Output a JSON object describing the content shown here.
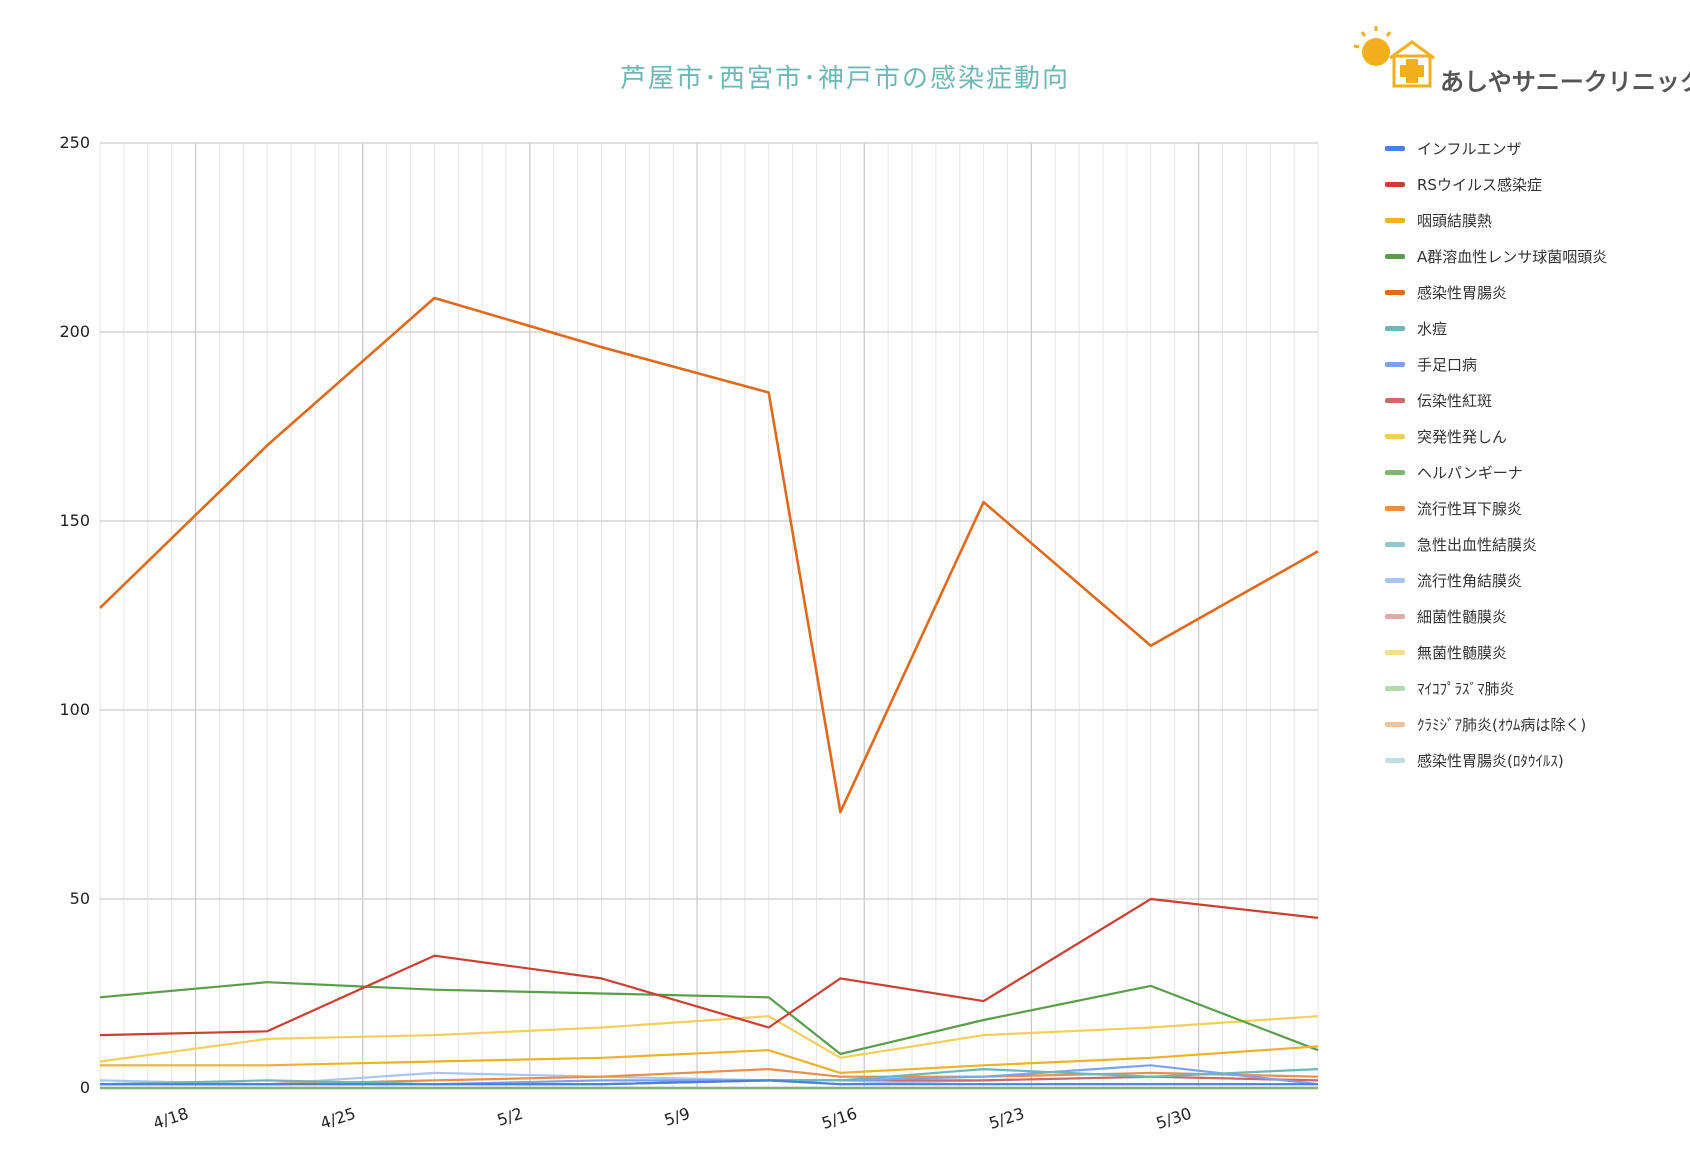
{
  "chart_data": {
    "type": "line",
    "title": "芦屋市･西宮市･神戸市の感染症動向",
    "xlabel": "",
    "ylabel": "",
    "ylim": [
      0,
      250
    ],
    "y_ticks": [
      "0",
      "50",
      "100",
      "150",
      "200",
      "250"
    ],
    "x_tick_labels": [
      "4/18",
      "4/25",
      "5/2",
      "5/9",
      "5/16",
      "5/23",
      "5/30"
    ],
    "x_tick_dates": [
      "4/18",
      "4/25",
      "5/2",
      "5/9",
      "5/16",
      "5/23",
      "5/30"
    ],
    "x": [
      "4/14",
      "4/21",
      "4/28",
      "5/5",
      "5/12",
      "5/15",
      "5/21",
      "5/28",
      "6/4"
    ],
    "x_range": [
      "4/14",
      "6/4"
    ],
    "grid": true,
    "legend_position": "right",
    "series": [
      {
        "name": "インフルエンザ",
        "color": "#4a7fe0",
        "values": [
          1,
          1,
          1,
          1,
          2,
          1,
          1,
          1,
          1
        ]
      },
      {
        "name": "RSウイルス感染症",
        "color": "#cc3f33",
        "values": [
          14,
          15,
          35,
          29,
          16,
          29,
          23,
          50,
          45
        ]
      },
      {
        "name": "咽頭結膜熱",
        "color": "#eeb229",
        "values": [
          6,
          6,
          7,
          8,
          10,
          4,
          6,
          8,
          11
        ]
      },
      {
        "name": "A群溶血性レンサ球菌咽頭炎",
        "color": "#5a9e4b",
        "values": [
          24,
          28,
          26,
          25,
          24,
          9,
          18,
          27,
          10
        ]
      },
      {
        "name": "感染性胃腸炎",
        "color": "#e06a1b",
        "values": [
          127,
          170,
          209,
          196,
          184,
          73,
          155,
          117,
          142
        ]
      },
      {
        "name": "水痘",
        "color": "#6cb8b8",
        "values": [
          1,
          2,
          1,
          1,
          2,
          2,
          5,
          3,
          5
        ]
      },
      {
        "name": "手足口病",
        "color": "#7ba3f0",
        "values": [
          1,
          1,
          1,
          2,
          2,
          2,
          3,
          6,
          1
        ]
      },
      {
        "name": "伝染性紅斑",
        "color": "#cf6a6a",
        "values": [
          1,
          1,
          1,
          1,
          2,
          2,
          2,
          3,
          2
        ]
      },
      {
        "name": "突発性発しん",
        "color": "#f2cf5b",
        "values": [
          7,
          13,
          14,
          16,
          19,
          8,
          14,
          16,
          19
        ]
      },
      {
        "name": "ヘルパンギーナ",
        "color": "#7ab86d",
        "values": [
          0,
          0,
          0,
          0,
          0,
          0,
          0,
          0,
          0
        ]
      },
      {
        "name": "流行性耳下腺炎",
        "color": "#e98f4a",
        "values": [
          1,
          1,
          2,
          3,
          5,
          3,
          3,
          4,
          3
        ]
      },
      {
        "name": "急性出血性結膜炎",
        "color": "#8ec9cc",
        "values": [
          0,
          0,
          0,
          0,
          0,
          0,
          0,
          0,
          0
        ]
      },
      {
        "name": "流行性角結膜炎",
        "color": "#a9c4f5",
        "values": [
          2,
          1,
          4,
          3,
          2,
          1,
          2,
          3,
          2
        ]
      },
      {
        "name": "細菌性髄膜炎",
        "color": "#e0aaa8",
        "values": [
          0,
          0,
          0,
          0,
          0,
          0,
          0,
          0,
          0
        ]
      },
      {
        "name": "無菌性髄膜炎",
        "color": "#f6de93",
        "values": [
          0,
          0,
          0,
          0,
          0,
          0,
          0,
          0,
          0
        ]
      },
      {
        "name": "ﾏｲｺﾌﾟﾗｽﾞﾏ肺炎",
        "color": "#b2d9ad",
        "values": [
          0,
          0,
          0,
          0,
          0,
          0,
          0,
          0,
          0
        ]
      },
      {
        "name": "ｸﾗﾐｼﾞｱ肺炎(ｵｳﾑ病は除く)",
        "color": "#f0c29c",
        "values": [
          0,
          0,
          0,
          0,
          0,
          0,
          0,
          0,
          0
        ]
      },
      {
        "name": "感染性胃腸炎(ﾛﾀｳｲﾙｽ)",
        "color": "#bfe0e3",
        "values": [
          0,
          0,
          0,
          0,
          0,
          0,
          0,
          0,
          0
        ]
      }
    ]
  },
  "logo": {
    "text": "あしやサニークリニック",
    "badge": "Sunny",
    "accent": "#f2b01e"
  }
}
